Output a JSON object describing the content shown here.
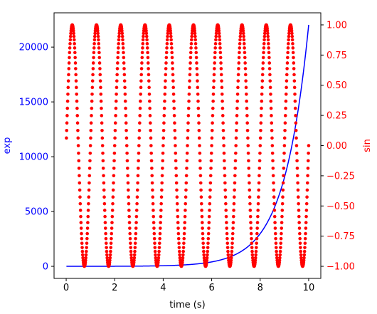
{
  "chart_data": {
    "type": "line",
    "title": "",
    "xlabel": "time (s)",
    "xlim": [
      -0.5,
      10.5
    ],
    "x_ticks": [
      0,
      2,
      4,
      6,
      8,
      10
    ],
    "x_tick_labels": [
      "0",
      "2",
      "4",
      "6",
      "8",
      "10"
    ],
    "grid": false,
    "y_left": {
      "label": "exp",
      "color": "#0000ff",
      "ylim": [
        -1101,
        23127
      ],
      "ticks": [
        0,
        5000,
        10000,
        15000,
        20000
      ],
      "tick_labels": [
        "0",
        "5000",
        "10000",
        "15000",
        "20000"
      ]
    },
    "y_right": {
      "label": "sin",
      "color": "#ff0000",
      "ylim": [
        -1.1,
        1.1
      ],
      "ticks": [
        -1.0,
        -0.75,
        -0.5,
        -0.25,
        0.0,
        0.25,
        0.5,
        0.75,
        1.0
      ],
      "tick_labels": [
        "−1.00",
        "−0.75",
        "−0.50",
        "−0.25",
        "0.00",
        "0.25",
        "0.50",
        "0.75",
        "1.00"
      ]
    },
    "series": [
      {
        "axis": "left",
        "style": "line",
        "color": "#0000ff",
        "formula": "y = exp(t)",
        "t_start": 0.01,
        "t_stop": 10.0,
        "t_step": 0.01
      },
      {
        "axis": "right",
        "style": "markers",
        "color": "#ff0000",
        "formula": "y = sin(2πt)",
        "t_start": 0.01,
        "t_stop": 10.0,
        "t_step": 0.01
      }
    ]
  }
}
